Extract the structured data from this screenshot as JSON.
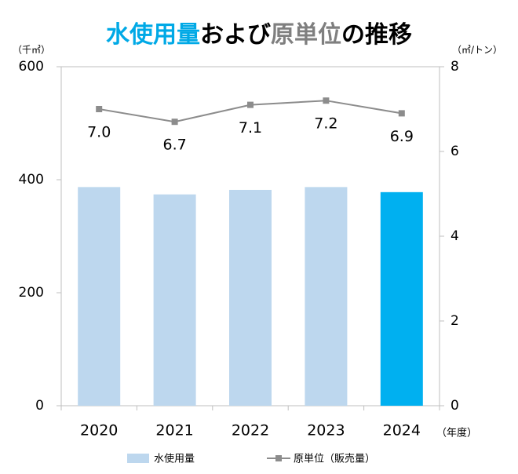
{
  "chart_data": {
    "type": "bar_line",
    "title": [
      {
        "text": "水使用量",
        "color": "#00a9e6"
      },
      {
        "text": "および",
        "color": "#000000"
      },
      {
        "text": "原単位",
        "color": "#7f7f7f"
      },
      {
        "text": "の推移",
        "color": "#000000"
      }
    ],
    "y_label": "（千㎥）",
    "y2_label": "（㎥/トン）",
    "x_label": "（年度）",
    "categories": [
      "2020",
      "2021",
      "2022",
      "2023",
      "2024"
    ],
    "series": [
      {
        "name": "水使用量",
        "type": "bar",
        "color": "#bdd7ee",
        "colors": [
          "#bdd7ee",
          "#bdd7ee",
          "#bdd7ee",
          "#bdd7ee",
          "#00b0f0"
        ],
        "values": [
          387,
          374,
          382,
          387,
          378
        ]
      },
      {
        "name": "原単位（販売量）",
        "type": "line",
        "axis": "y2",
        "color": "#8c8c8c",
        "values": [
          7.0,
          6.7,
          7.1,
          7.2,
          6.9
        ],
        "value_labels": [
          "7.0",
          "6.7",
          "7.1",
          "7.2",
          "6.9"
        ]
      }
    ],
    "ylim": [
      0,
      600
    ],
    "yticks": [
      0,
      200,
      400,
      600
    ],
    "y2lim": [
      0,
      8
    ],
    "y2ticks": [
      0,
      2,
      4,
      6,
      8
    ]
  }
}
